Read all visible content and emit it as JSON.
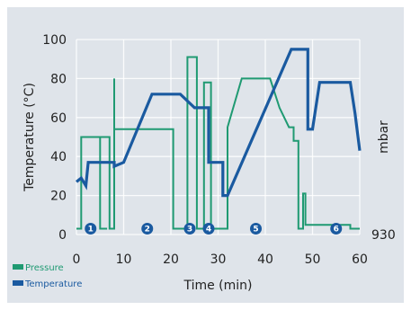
{
  "chart_data": {
    "type": "line",
    "xlabel": "Time (min)",
    "ylabel": "Temperature (°C)",
    "y2label": "mbar",
    "y2_tick": "930",
    "xlim": [
      0,
      60
    ],
    "ylim": [
      0,
      100
    ],
    "x_ticks": [
      "0",
      "10",
      "20",
      "30",
      "40",
      "50",
      "60"
    ],
    "y_ticks": [
      "0",
      "20",
      "40",
      "60",
      "80",
      "100"
    ],
    "grid": true,
    "legend_position": "bottom-left",
    "background_color": "#dfe4ea",
    "series": [
      {
        "name": "Pressure",
        "color": "#1f9a72",
        "x": [
          0,
          1,
          1,
          5,
          5,
          6.5,
          6.5,
          5,
          5,
          7,
          7,
          8,
          8,
          8,
          8,
          8,
          20.5,
          20.5,
          23.5,
          23.5,
          25.5,
          25.5,
          27,
          27,
          28.5,
          28.5,
          32,
          32,
          32,
          35,
          35,
          40,
          41,
          43,
          45,
          45,
          46,
          46,
          47,
          47,
          48,
          48,
          48.5,
          48.5,
          50,
          56,
          56,
          58,
          58,
          60
        ],
        "y": [
          3,
          3,
          50,
          50,
          3,
          3,
          3,
          3,
          50,
          50,
          3,
          3,
          80,
          80,
          3,
          54,
          54,
          3,
          3,
          91,
          91,
          3,
          3,
          78,
          78,
          3,
          3,
          55,
          55,
          80,
          80,
          80,
          80,
          65,
          55,
          55,
          55,
          48,
          48,
          3,
          3,
          21,
          21,
          5,
          5,
          5,
          5,
          5,
          3,
          3
        ]
      },
      {
        "name": "Temperature",
        "color": "#1a5aa0",
        "x": [
          0,
          1,
          2,
          2.5,
          3,
          8,
          8,
          10,
          16,
          20,
          22,
          25,
          28,
          28,
          31,
          31,
          32,
          45.5,
          49,
          49,
          50,
          50,
          51.5,
          58,
          59,
          60
        ],
        "y": [
          27,
          29,
          25,
          37,
          37,
          37,
          35,
          37,
          72,
          72,
          72,
          65,
          65,
          37,
          37,
          20,
          20,
          95,
          95,
          54,
          54,
          54,
          78,
          78,
          62,
          43
        ]
      }
    ],
    "phases": [
      "1",
      "2",
      "3",
      "4",
      "5",
      "6"
    ]
  }
}
